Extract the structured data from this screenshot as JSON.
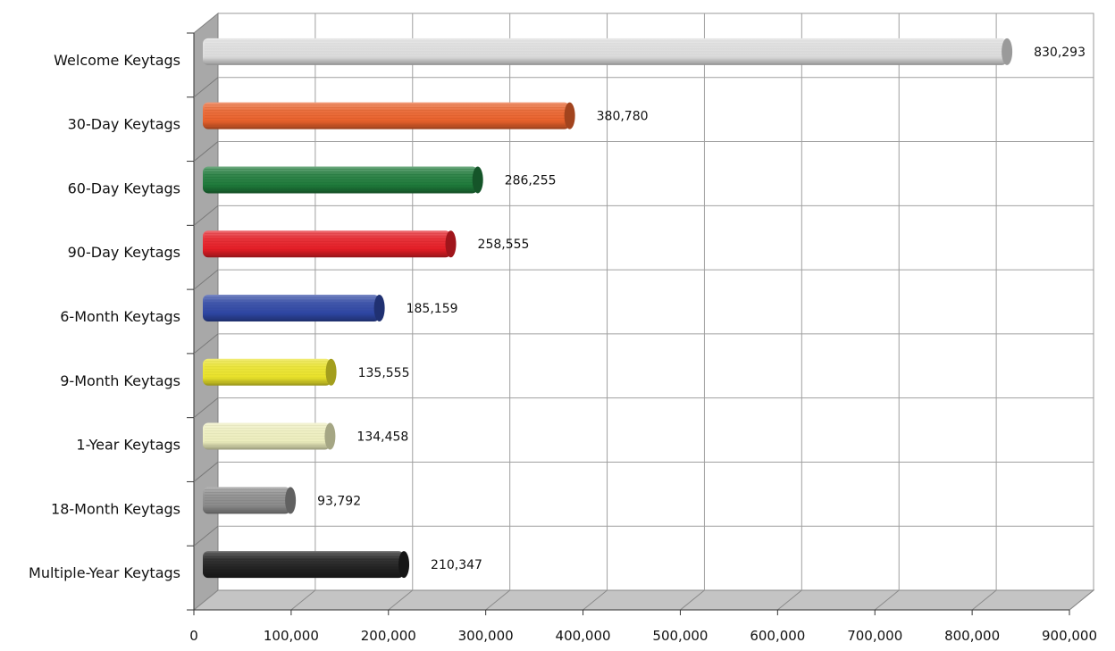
{
  "chart_data": {
    "type": "bar",
    "orientation": "horizontal",
    "style": "3d-cylinder",
    "title": "",
    "xlabel": "",
    "ylabel": "",
    "xlim": [
      0,
      900000
    ],
    "grid": true,
    "legend": "none",
    "x_ticks": [
      "0",
      "100,000",
      "200,000",
      "300,000",
      "400,000",
      "500,000",
      "600,000",
      "700,000",
      "800,000",
      "900,000"
    ],
    "categories": [
      "Welcome Keytags",
      "30-Day Keytags",
      "60-Day Keytags",
      "90-Day Keytags",
      "6-Month Keytags",
      "9-Month Keytags",
      "1-Year Keytags",
      "18-Month Keytags",
      "Multiple-Year Keytags"
    ],
    "values": [
      830293,
      380780,
      286255,
      258555,
      185159,
      135555,
      134458,
      93792,
      210347
    ],
    "value_labels": [
      "830,293",
      "380,780",
      "286,255",
      "258,555",
      "185,159",
      "135,555",
      "134,458",
      "93,792",
      "210,347"
    ],
    "colors": [
      "#dcdcdc",
      "#e8612b",
      "#1e7a3a",
      "#e41e26",
      "#2e46a3",
      "#e9e22a",
      "#ecedbd",
      "#8a8a8a",
      "#202020"
    ]
  }
}
